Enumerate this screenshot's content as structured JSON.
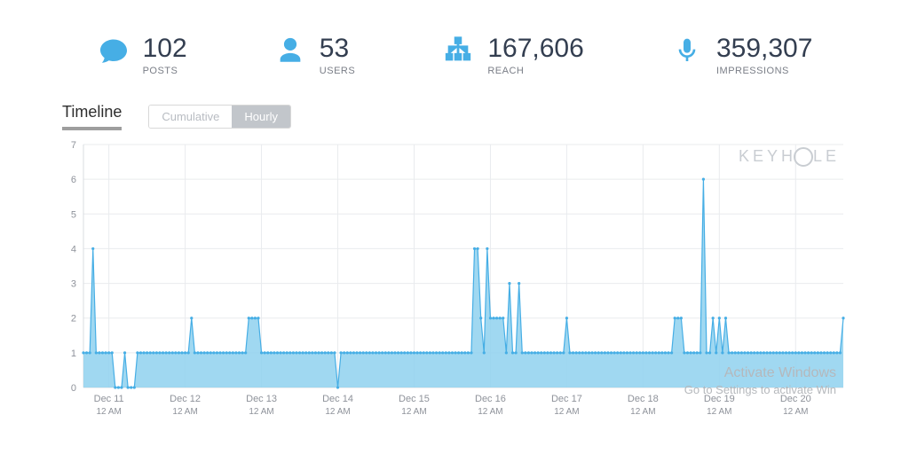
{
  "stats": {
    "posts": {
      "value": "102",
      "label": "POSTS"
    },
    "users": {
      "value": "53",
      "label": "USERS"
    },
    "reach": {
      "value": "167,606",
      "label": "REACH"
    },
    "impressions": {
      "value": "359,307",
      "label": "IMPRESSIONS"
    }
  },
  "timeline": {
    "title": "Timeline",
    "toggle": {
      "cumulative": "Cumulative",
      "hourly": "Hourly",
      "active": "hourly"
    }
  },
  "watermark": {
    "logo": "KEYH",
    "logo_after": "LE",
    "windows_l1": "Activate Windows",
    "windows_l2": "Go to Settings to activate Win"
  },
  "chart": {
    "type": "area",
    "ylim": [
      0,
      7
    ],
    "ytick_step": 1,
    "background_color": "#ffffff",
    "grid_color": "#e9ebee",
    "line_color": "#46aee5",
    "fill_color": "#8fd1ef",
    "fill_opacity": 0.85,
    "marker_color": "#46aee5",
    "marker_radius": 1.6,
    "line_width": 1.2,
    "x_major_labels": [
      "Dec 11",
      "Dec 12",
      "Dec 13",
      "Dec 14",
      "Dec 15",
      "Dec 16",
      "Dec 17",
      "Dec 18",
      "Dec 19",
      "Dec 20"
    ],
    "x_sub_label": "12 AM",
    "x_major_positions": [
      8,
      32,
      56,
      80,
      104,
      128,
      152,
      176,
      200,
      224
    ],
    "x_count": 240,
    "values": [
      1,
      1,
      1,
      4,
      1,
      1,
      1,
      1,
      1,
      1,
      0,
      0,
      0,
      1,
      0,
      0,
      0,
      1,
      1,
      1,
      1,
      1,
      1,
      1,
      1,
      1,
      1,
      1,
      1,
      1,
      1,
      1,
      1,
      1,
      2,
      1,
      1,
      1,
      1,
      1,
      1,
      1,
      1,
      1,
      1,
      1,
      1,
      1,
      1,
      1,
      1,
      1,
      2,
      2,
      2,
      2,
      1,
      1,
      1,
      1,
      1,
      1,
      1,
      1,
      1,
      1,
      1,
      1,
      1,
      1,
      1,
      1,
      1,
      1,
      1,
      1,
      1,
      1,
      1,
      1,
      0,
      1,
      1,
      1,
      1,
      1,
      1,
      1,
      1,
      1,
      1,
      1,
      1,
      1,
      1,
      1,
      1,
      1,
      1,
      1,
      1,
      1,
      1,
      1,
      1,
      1,
      1,
      1,
      1,
      1,
      1,
      1,
      1,
      1,
      1,
      1,
      1,
      1,
      1,
      1,
      1,
      1,
      1,
      4,
      4,
      2,
      1,
      4,
      2,
      2,
      2,
      2,
      2,
      1,
      3,
      1,
      1,
      3,
      1,
      1,
      1,
      1,
      1,
      1,
      1,
      1,
      1,
      1,
      1,
      1,
      1,
      1,
      2,
      1,
      1,
      1,
      1,
      1,
      1,
      1,
      1,
      1,
      1,
      1,
      1,
      1,
      1,
      1,
      1,
      1,
      1,
      1,
      1,
      1,
      1,
      1,
      1,
      1,
      1,
      1,
      1,
      1,
      1,
      1,
      1,
      1,
      2,
      2,
      2,
      1,
      1,
      1,
      1,
      1,
      1,
      6,
      1,
      1,
      2,
      1,
      2,
      1,
      2,
      1,
      1,
      1,
      1,
      1,
      1,
      1,
      1,
      1,
      1,
      1,
      1,
      1,
      1,
      1,
      1,
      1,
      1,
      1,
      1,
      1,
      1,
      1,
      1,
      1,
      1,
      1,
      1,
      1,
      1,
      1,
      1,
      1,
      1,
      1,
      1,
      2
    ]
  }
}
